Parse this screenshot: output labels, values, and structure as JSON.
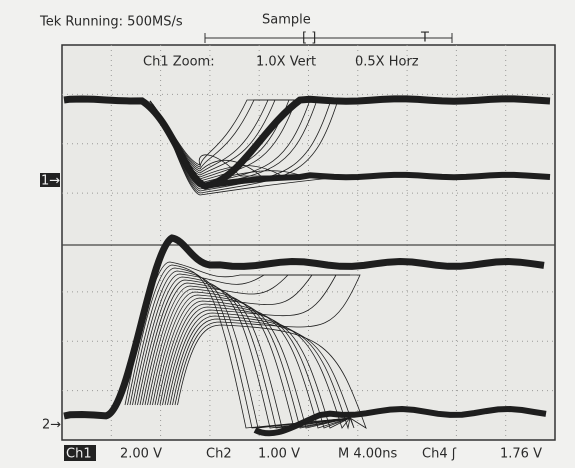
{
  "header": {
    "status": "Tek Running: 500MS/s",
    "mode": "Sample",
    "window": "[ ]",
    "trigger_mark": "T",
    "zoom_label": "Ch1 Zoom:",
    "vert_zoom": "1.0X Vert",
    "horz_zoom": "0.5X Horz"
  },
  "markers": {
    "ch1": "1→",
    "ch2": "2→"
  },
  "footer": {
    "ch1_label": "Ch1",
    "ch1_scale": "2.00 V",
    "ch2_label": "Ch2",
    "ch2_scale": "1.00 V",
    "timebase": "M 4.00ns",
    "trigger_source": "Ch4 ʃ",
    "trigger_level": "1.76 V"
  }
}
